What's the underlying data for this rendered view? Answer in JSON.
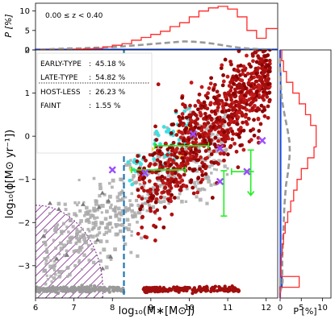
{
  "chart_data": {
    "type": "scatter",
    "redshift_label": "0.00 ≤ z < 0.40",
    "xlabel": "log₁₀(M∗[M⊙])",
    "ylabel": "log₁₀(ϕ[M⊙ yr⁻¹])",
    "xlim": [
      6.0,
      12.3
    ],
    "ylim": [
      -3.75,
      2.0
    ],
    "x_ticks": [
      "6",
      "7",
      "8",
      "9",
      "10",
      "11",
      "12"
    ],
    "y_ticks": [
      "−3",
      "−2",
      "−1",
      "0",
      "1",
      "2"
    ],
    "top_panel": {
      "ylabel": "P [%]",
      "ylim": [
        0,
        12
      ],
      "y_ticks": [
        "0",
        "5",
        "10"
      ]
    },
    "right_panel": {
      "xlabel": "P [%]",
      "xlim": [
        0,
        12
      ],
      "x_ticks": [
        "0",
        "5",
        "10"
      ]
    },
    "legend": [
      {
        "label": "EARLY-TYPE",
        "value": "45.18  %"
      },
      {
        "label": "LATE-TYPE",
        "value": "54.82 %"
      },
      {
        "label": "HOST-LESS",
        "value": "26.23 %"
      },
      {
        "label": "FAINT",
        "value": "1.55  %"
      }
    ],
    "mass_completeness_limit": 8.3,
    "colors": {
      "early_type": "#b01010",
      "late_type": "#ff2a2a",
      "host_less": "#a9a9a9",
      "faint": "#1f4fe0",
      "cut_line": "#1f77b4",
      "hatch_region": "#7b1f8a",
      "error_bars": "#22ee22",
      "cross_markers": "#9b4dff"
    },
    "top_hist": {
      "x_edges": [
        6.0,
        6.25,
        6.5,
        6.75,
        7.0,
        7.25,
        7.5,
        7.75,
        8.0,
        8.25,
        8.5,
        8.75,
        9.0,
        9.25,
        9.5,
        9.75,
        10.0,
        10.25,
        10.5,
        10.75,
        11.0,
        11.25,
        11.5,
        11.75,
        12.0,
        12.3
      ],
      "red": [
        0,
        0,
        0,
        0,
        0.2,
        0.3,
        0.4,
        0.8,
        1.2,
        1.6,
        2.5,
        3.2,
        4.0,
        4.8,
        6.0,
        7.0,
        8.5,
        10.0,
        10.8,
        11.2,
        10.5,
        8.5,
        5.0,
        3.0,
        5.5
      ],
      "gray": [
        0.1,
        0.2,
        0.3,
        0.4,
        0.4,
        0.5,
        0.6,
        0.7,
        0.8,
        1.0,
        1.2,
        1.4,
        1.6,
        1.8,
        2.0,
        2.2,
        2.1,
        1.9,
        1.6,
        1.2,
        0.8,
        0.5,
        0.3,
        0.2,
        0.1
      ],
      "blue": [
        0.1,
        0.1,
        0.1,
        0.1,
        0.1,
        0.1,
        0.1,
        0.1,
        0.1,
        0.1,
        0.1,
        0.1,
        0.1,
        0.1,
        0.1,
        0.1,
        0.1,
        0.1,
        0.1,
        0.1,
        0.1,
        0.1,
        0.1,
        0.1,
        0.1
      ]
    },
    "right_hist": {
      "y_edges": [
        -3.75,
        -3.5,
        -3.25,
        -3.0,
        -2.75,
        -2.5,
        -2.25,
        -2.0,
        -1.75,
        -1.5,
        -1.25,
        -1.0,
        -0.75,
        -0.5,
        -0.25,
        0.0,
        0.25,
        0.5,
        0.75,
        1.0,
        1.25,
        1.5,
        1.75,
        2.0
      ],
      "red": [
        0,
        4.5,
        0.2,
        0.3,
        0.5,
        0.8,
        1.2,
        1.8,
        2.5,
        3.2,
        4.0,
        5.0,
        6.5,
        8.0,
        8.5,
        8.5,
        7.2,
        6.0,
        4.5,
        3.0,
        1.5,
        0.8,
        0.4
      ],
      "gray": [
        0,
        0.6,
        0.5,
        0.5,
        0.6,
        0.7,
        0.8,
        0.9,
        1.0,
        1.2,
        1.4,
        1.8,
        2.1,
        2.3,
        2.2,
        1.8,
        1.3,
        0.8,
        0.4,
        0.2,
        0.1,
        0,
        0
      ],
      "blue": [
        0,
        0.4,
        0.1,
        0.1,
        0.1,
        0.1,
        0.1,
        0.1,
        0.1,
        0.1,
        0.1,
        0.1,
        0.1,
        0.1,
        0.1,
        0.1,
        0.1,
        0.1,
        0.1,
        0.1,
        0.1,
        0,
        0
      ]
    },
    "error_points": [
      {
        "x": 9.9,
        "y": -0.22,
        "xerr": [
          0.8,
          0.6
        ]
      },
      {
        "x": 9.1,
        "y": -0.78,
        "xerr": [
          0.6,
          0.8
        ]
      },
      {
        "x": 10.9,
        "y": -1.05,
        "yerr": [
          0.8,
          0.25
        ]
      },
      {
        "x": 11.6,
        "y": -0.82,
        "xerr": [
          0.5,
          0.0
        ],
        "yerr": [
          0.0,
          0.5
        ]
      }
    ],
    "cross_points": [
      {
        "x": 10.8,
        "y": -0.28
      },
      {
        "x": 11.9,
        "y": -0.1
      },
      {
        "x": 8.85,
        "y": -0.85
      },
      {
        "x": 10.8,
        "y": -1.05
      },
      {
        "x": 11.5,
        "y": -0.82
      },
      {
        "x": 8.0,
        "y": -0.78
      },
      {
        "x": 10.1,
        "y": 0.05
      }
    ]
  }
}
